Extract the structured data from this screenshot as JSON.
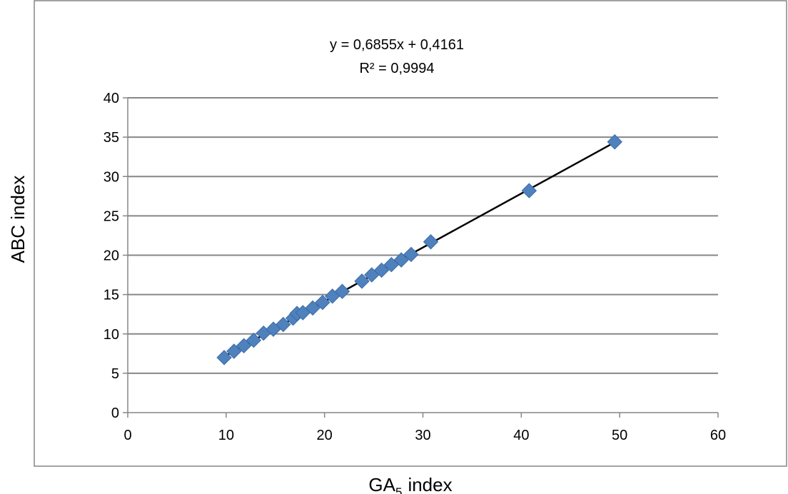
{
  "chart_data": {
    "type": "scatter",
    "title": "",
    "xlabel": "index",
    "xlabel_base": "GA",
    "xlabel_sub": "5",
    "ylabel": "ABC index",
    "xlim": [
      0,
      60
    ],
    "ylim": [
      0,
      40
    ],
    "x_ticks": [
      "0",
      "10",
      "20",
      "30",
      "40",
      "50",
      "60"
    ],
    "y_ticks": [
      "0",
      "5",
      "10",
      "15",
      "20",
      "25",
      "30",
      "35",
      "40"
    ],
    "grid": "horizontal",
    "legend": "none",
    "marker": "diamond",
    "marker_color": "#4F81BD",
    "trendline_color": "#000000",
    "trendline": {
      "equation": "y = 0,6855x + 0,4161",
      "r_squared": "R² = 0,9994",
      "slope": 0.6855,
      "intercept": 0.4161,
      "x_range": [
        9.8,
        49.5
      ]
    },
    "points": [
      {
        "x": 9.8,
        "y": 7.0
      },
      {
        "x": 10.8,
        "y": 7.8
      },
      {
        "x": 11.8,
        "y": 8.5
      },
      {
        "x": 12.8,
        "y": 9.2
      },
      {
        "x": 13.8,
        "y": 10.1
      },
      {
        "x": 14.8,
        "y": 10.6
      },
      {
        "x": 15.8,
        "y": 11.2
      },
      {
        "x": 16.8,
        "y": 12.0
      },
      {
        "x": 17.2,
        "y": 12.6
      },
      {
        "x": 17.8,
        "y": 12.7
      },
      {
        "x": 18.8,
        "y": 13.3
      },
      {
        "x": 19.8,
        "y": 14.0
      },
      {
        "x": 20.8,
        "y": 14.8
      },
      {
        "x": 21.8,
        "y": 15.4
      },
      {
        "x": 23.8,
        "y": 16.7
      },
      {
        "x": 24.8,
        "y": 17.5
      },
      {
        "x": 25.8,
        "y": 18.1
      },
      {
        "x": 26.8,
        "y": 18.8
      },
      {
        "x": 27.8,
        "y": 19.4
      },
      {
        "x": 28.8,
        "y": 20.1
      },
      {
        "x": 30.8,
        "y": 21.7
      },
      {
        "x": 40.8,
        "y": 28.2
      },
      {
        "x": 49.5,
        "y": 34.4
      }
    ]
  }
}
